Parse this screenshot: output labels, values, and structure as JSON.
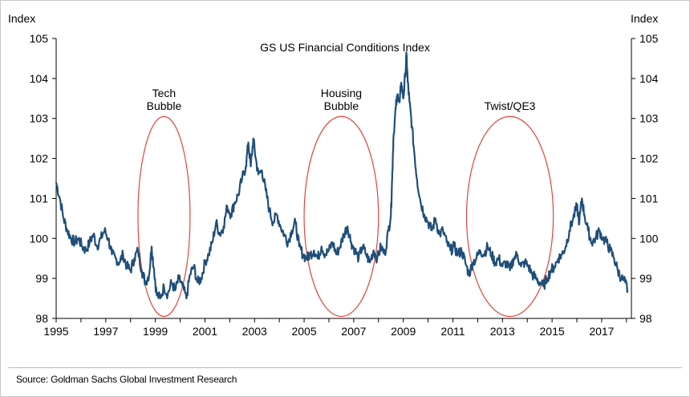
{
  "chart_data": {
    "type": "line",
    "title": "GS US Financial Conditions Index",
    "ylabel_left": "Index",
    "ylabel_right": "Index",
    "ylim": [
      98,
      105
    ],
    "yticks": [
      98,
      99,
      100,
      101,
      102,
      103,
      104,
      105
    ],
    "xlim": [
      1995,
      2018.2
    ],
    "xticks": [
      1995,
      1997,
      1999,
      2001,
      2003,
      2005,
      2007,
      2009,
      2011,
      2013,
      2015,
      2017
    ],
    "grid": false,
    "series_color": "#1f4e79",
    "annotation_color": "#e0443a",
    "series": [
      {
        "values": [
          [
            1995.0,
            101.4
          ],
          [
            1995.15,
            101.0
          ],
          [
            1995.3,
            100.5
          ],
          [
            1995.45,
            100.2
          ],
          [
            1995.6,
            100.0
          ],
          [
            1995.75,
            99.9
          ],
          [
            1995.9,
            100.0
          ],
          [
            1996.05,
            99.8
          ],
          [
            1996.2,
            99.7
          ],
          [
            1996.35,
            99.9
          ],
          [
            1996.5,
            100.1
          ],
          [
            1996.65,
            99.8
          ],
          [
            1996.8,
            100.0
          ],
          [
            1996.95,
            100.2
          ],
          [
            1997.1,
            100.0
          ],
          [
            1997.25,
            99.6
          ],
          [
            1997.4,
            99.5
          ],
          [
            1997.55,
            99.4
          ],
          [
            1997.7,
            99.6
          ],
          [
            1997.85,
            99.3
          ],
          [
            1998.0,
            99.2
          ],
          [
            1998.15,
            99.5
          ],
          [
            1998.3,
            99.7
          ],
          [
            1998.45,
            99.2
          ],
          [
            1998.6,
            98.9
          ],
          [
            1998.75,
            99.1
          ],
          [
            1998.85,
            99.8
          ],
          [
            1998.95,
            99.2
          ],
          [
            1999.05,
            98.6
          ],
          [
            1999.2,
            98.5
          ],
          [
            1999.35,
            98.8
          ],
          [
            1999.5,
            98.6
          ],
          [
            1999.65,
            98.9
          ],
          [
            1999.8,
            98.7
          ],
          [
            1999.95,
            99.0
          ],
          [
            2000.1,
            98.8
          ],
          [
            2000.25,
            98.5
          ],
          [
            2000.4,
            99.1
          ],
          [
            2000.55,
            99.3
          ],
          [
            2000.7,
            98.9
          ],
          [
            2000.85,
            99.0
          ],
          [
            2001.0,
            99.4
          ],
          [
            2001.15,
            99.6
          ],
          [
            2001.3,
            99.9
          ],
          [
            2001.45,
            100.4
          ],
          [
            2001.6,
            100.1
          ],
          [
            2001.75,
            100.3
          ],
          [
            2001.9,
            100.8
          ],
          [
            2002.05,
            100.6
          ],
          [
            2002.2,
            100.9
          ],
          [
            2002.35,
            101.1
          ],
          [
            2002.5,
            101.5
          ],
          [
            2002.65,
            101.8
          ],
          [
            2002.75,
            102.4
          ],
          [
            2002.85,
            101.8
          ],
          [
            2002.95,
            102.5
          ],
          [
            2003.05,
            102.0
          ],
          [
            2003.15,
            101.6
          ],
          [
            2003.3,
            101.7
          ],
          [
            2003.45,
            101.2
          ],
          [
            2003.6,
            100.7
          ],
          [
            2003.75,
            100.4
          ],
          [
            2003.9,
            100.6
          ],
          [
            2004.05,
            100.3
          ],
          [
            2004.2,
            100.1
          ],
          [
            2004.35,
            99.9
          ],
          [
            2004.5,
            100.2
          ],
          [
            2004.65,
            100.4
          ],
          [
            2004.8,
            99.8
          ],
          [
            2004.95,
            99.6
          ],
          [
            2005.1,
            99.5
          ],
          [
            2005.25,
            99.6
          ],
          [
            2005.4,
            99.7
          ],
          [
            2005.55,
            99.5
          ],
          [
            2005.7,
            99.8
          ],
          [
            2005.85,
            99.6
          ],
          [
            2006.0,
            99.7
          ],
          [
            2006.15,
            99.9
          ],
          [
            2006.3,
            99.6
          ],
          [
            2006.45,
            99.8
          ],
          [
            2006.6,
            100.1
          ],
          [
            2006.75,
            100.3
          ],
          [
            2006.9,
            99.9
          ],
          [
            2007.05,
            99.7
          ],
          [
            2007.2,
            99.5
          ],
          [
            2007.35,
            99.8
          ],
          [
            2007.5,
            99.6
          ],
          [
            2007.65,
            99.4
          ],
          [
            2007.8,
            99.7
          ],
          [
            2007.95,
            99.5
          ],
          [
            2008.1,
            99.8
          ],
          [
            2008.25,
            99.6
          ],
          [
            2008.4,
            100.2
          ],
          [
            2008.5,
            100.6
          ],
          [
            2008.55,
            101.5
          ],
          [
            2008.6,
            102.5
          ],
          [
            2008.7,
            103.3
          ],
          [
            2008.78,
            103.6
          ],
          [
            2008.85,
            103.4
          ],
          [
            2008.92,
            103.9
          ],
          [
            2009.0,
            103.5
          ],
          [
            2009.08,
            104.1
          ],
          [
            2009.13,
            104.6
          ],
          [
            2009.18,
            103.9
          ],
          [
            2009.25,
            103.4
          ],
          [
            2009.35,
            102.8
          ],
          [
            2009.45,
            102.1
          ],
          [
            2009.55,
            101.5
          ],
          [
            2009.7,
            100.9
          ],
          [
            2009.85,
            100.6
          ],
          [
            2010.0,
            100.4
          ],
          [
            2010.15,
            100.2
          ],
          [
            2010.3,
            100.5
          ],
          [
            2010.45,
            100.1
          ],
          [
            2010.6,
            100.2
          ],
          [
            2010.75,
            99.9
          ],
          [
            2010.9,
            99.7
          ],
          [
            2011.05,
            99.8
          ],
          [
            2011.2,
            99.6
          ],
          [
            2011.35,
            99.7
          ],
          [
            2011.5,
            99.4
          ],
          [
            2011.65,
            99.1
          ],
          [
            2011.8,
            99.4
          ],
          [
            2011.95,
            99.5
          ],
          [
            2012.1,
            99.7
          ],
          [
            2012.25,
            99.6
          ],
          [
            2012.4,
            99.8
          ],
          [
            2012.55,
            99.6
          ],
          [
            2012.7,
            99.4
          ],
          [
            2012.85,
            99.5
          ],
          [
            2013.0,
            99.3
          ],
          [
            2013.15,
            99.4
          ],
          [
            2013.3,
            99.2
          ],
          [
            2013.45,
            99.5
          ],
          [
            2013.6,
            99.6
          ],
          [
            2013.75,
            99.3
          ],
          [
            2013.9,
            99.4
          ],
          [
            2014.05,
            99.3
          ],
          [
            2014.2,
            99.1
          ],
          [
            2014.35,
            99.0
          ],
          [
            2014.5,
            98.9
          ],
          [
            2014.65,
            98.8
          ],
          [
            2014.8,
            99.0
          ],
          [
            2014.95,
            99.2
          ],
          [
            2015.1,
            99.3
          ],
          [
            2015.25,
            99.5
          ],
          [
            2015.4,
            99.6
          ],
          [
            2015.55,
            99.8
          ],
          [
            2015.7,
            100.2
          ],
          [
            2015.85,
            100.5
          ],
          [
            2016.0,
            100.8
          ],
          [
            2016.1,
            100.4
          ],
          [
            2016.2,
            101.0
          ],
          [
            2016.3,
            100.6
          ],
          [
            2016.45,
            100.2
          ],
          [
            2016.6,
            99.9
          ],
          [
            2016.75,
            100.0
          ],
          [
            2016.9,
            100.2
          ],
          [
            2017.05,
            100.0
          ],
          [
            2017.2,
            99.9
          ],
          [
            2017.35,
            99.7
          ],
          [
            2017.5,
            99.5
          ],
          [
            2017.65,
            99.2
          ],
          [
            2017.8,
            99.0
          ],
          [
            2017.95,
            98.9
          ],
          [
            2018.05,
            98.7
          ]
        ]
      }
    ],
    "annotations": [
      {
        "label_lines": [
          "Tech",
          "Bubble"
        ],
        "center_x": 1999.35,
        "center_y": 100.55,
        "rx": 1.05,
        "ry": 2.5
      },
      {
        "label_lines": [
          "Housing",
          "Bubble"
        ],
        "center_x": 2006.5,
        "center_y": 100.55,
        "rx": 1.5,
        "ry": 2.5
      },
      {
        "label_lines": [
          "Twist/QE3"
        ],
        "center_x": 2013.3,
        "center_y": 100.55,
        "rx": 1.75,
        "ry": 2.5
      }
    ]
  },
  "footer": {
    "source": "Source: Goldman Sachs Global Investment Research"
  }
}
